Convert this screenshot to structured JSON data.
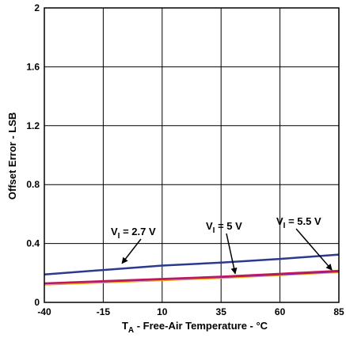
{
  "chart_data": {
    "type": "line",
    "xlabel": "T",
    "xlabel_sub": "A",
    "xlabel_rest": " - Free-Air Temperature - °C",
    "ylabel": "Offset Error - LSB",
    "xlim": [
      -40,
      85
    ],
    "ylim": [
      0,
      2
    ],
    "xticks": [
      -40,
      -15,
      10,
      35,
      60,
      85
    ],
    "yticks": [
      0,
      0.4,
      0.8,
      1.2,
      1.6,
      2
    ],
    "ytick_labels": [
      "0",
      "0.4",
      "0.8",
      "1.2",
      "1.6",
      "2"
    ],
    "grid": true,
    "series": [
      {
        "name": "V_I = 2.7 V",
        "color": "#2b3a8f",
        "x": [
          -40,
          -15,
          10,
          35,
          60,
          85
        ],
        "y": [
          0.19,
          0.22,
          0.25,
          0.27,
          0.295,
          0.325
        ]
      },
      {
        "name": "V_I = 5 V",
        "color": "#c2185b",
        "x": [
          -40,
          -15,
          10,
          35,
          60,
          85
        ],
        "y": [
          0.13,
          0.145,
          0.16,
          0.175,
          0.195,
          0.215
        ]
      },
      {
        "name": "V_I = 5.5 V",
        "color": "#f5a623",
        "x": [
          -40,
          -15,
          10,
          35,
          60,
          85
        ],
        "y": [
          0.12,
          0.135,
          0.15,
          0.165,
          0.185,
          0.205
        ]
      },
      {
        "name": "",
        "color": "#7b1fa2",
        "x": [
          -40,
          -15,
          10,
          35,
          60,
          85
        ],
        "y": [
          0.128,
          0.142,
          0.157,
          0.172,
          0.19,
          0.21
        ]
      }
    ],
    "annotations": [
      {
        "main": "V",
        "sub": "I",
        "rest": " = 2.7 V",
        "point": [
          -7,
          0.255
        ]
      },
      {
        "main": "V",
        "sub": "I",
        "rest": " = 5 V",
        "point": [
          41,
          0.185
        ]
      },
      {
        "main": "V",
        "sub": "I",
        "rest": " = 5.5 V",
        "point": [
          82,
          0.21
        ]
      }
    ]
  }
}
